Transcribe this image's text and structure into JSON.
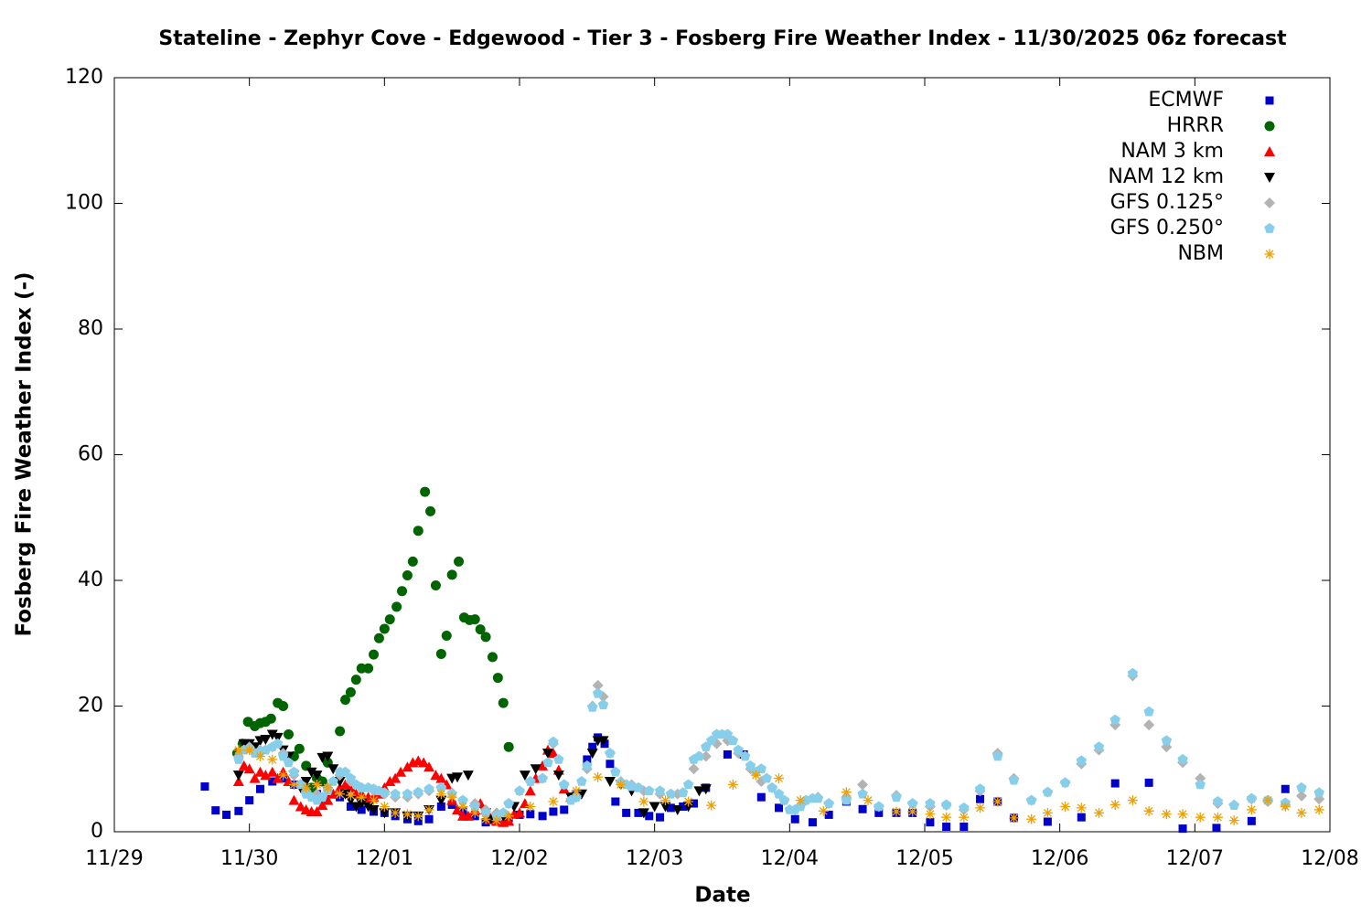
{
  "chart_data": {
    "type": "scatter",
    "title": "Stateline - Zephyr Cove - Edgewood - Tier 3 - Fosberg Fire Weather Index - 11/30/2025 06z forecast",
    "xlabel": "Date",
    "ylabel": "Fosberg Fire Weather Index (-)",
    "xlim": [
      0,
      9
    ],
    "xticks": [
      {
        "value": 0,
        "label": "11/29"
      },
      {
        "value": 1,
        "label": "11/30"
      },
      {
        "value": 2,
        "label": "12/01"
      },
      {
        "value": 3,
        "label": "12/02"
      },
      {
        "value": 4,
        "label": "12/03"
      },
      {
        "value": 5,
        "label": "12/04"
      },
      {
        "value": 6,
        "label": "12/05"
      },
      {
        "value": 7,
        "label": "12/06"
      },
      {
        "value": 8,
        "label": "12/07"
      },
      {
        "value": 9,
        "label": "12/08"
      }
    ],
    "ylim": [
      0,
      120
    ],
    "yticks": [
      0,
      20,
      40,
      60,
      80,
      100,
      120
    ],
    "legend": "top right",
    "series": [
      {
        "name": "ECMWF",
        "color": "#0000cc",
        "marker": "square",
        "x": [
          0.67,
          0.75,
          0.83,
          0.92,
          1.0,
          1.08,
          1.17,
          1.25,
          1.33,
          1.42,
          1.5,
          1.58,
          1.67,
          1.75,
          1.83,
          1.92,
          2.0,
          2.08,
          2.17,
          2.25,
          2.33,
          2.42,
          2.5,
          2.58,
          2.67,
          2.75,
          2.83,
          2.92,
          3.0,
          3.08,
          3.17,
          3.25,
          3.33,
          3.42,
          3.5,
          3.54,
          3.58,
          3.63,
          3.67,
          3.71,
          3.79,
          3.88,
          3.96,
          4.04,
          4.12,
          4.21,
          4.29,
          4.38,
          4.54,
          4.66,
          4.79,
          4.92,
          5.04,
          5.17,
          5.29,
          5.42,
          5.54,
          5.66,
          5.79,
          5.91,
          6.04,
          6.16,
          6.29,
          6.41,
          6.54,
          6.66,
          6.91,
          7.16,
          7.41,
          7.66,
          7.91,
          8.16,
          8.42,
          8.67
        ],
        "values": [
          7.2,
          3.4,
          2.7,
          3.3,
          5,
          6.8,
          8,
          8.5,
          7.5,
          6.5,
          6,
          6,
          5.5,
          4,
          3.5,
          3.2,
          3,
          2.5,
          2,
          1.7,
          2,
          4,
          4.3,
          3.2,
          2.5,
          1.5,
          1.6,
          2.2,
          2.7,
          2.8,
          2.5,
          3.2,
          3.5,
          6,
          11.5,
          13.5,
          15,
          14,
          10.8,
          4.8,
          3,
          3,
          2.5,
          2.3,
          3.8,
          4,
          4.5,
          7,
          12.3,
          12.3,
          5.5,
          3.8,
          2,
          1.5,
          2.7,
          4.8,
          3.6,
          3,
          3,
          3,
          1.5,
          0.8,
          0.8,
          5.2,
          4.8,
          2.2,
          1.6,
          2.3,
          7.7,
          7.8,
          0.5,
          0.6,
          1.7,
          6.8
        ]
      },
      {
        "name": "HRRR",
        "color": "#006400",
        "marker": "circle",
        "x": [
          0.91,
          0.95,
          0.99,
          1.04,
          1.08,
          1.12,
          1.16,
          1.21,
          1.25,
          1.29,
          1.33,
          1.37,
          1.42,
          1.46,
          1.5,
          1.54,
          1.58,
          1.67,
          1.71,
          1.75,
          1.79,
          1.83,
          1.88,
          1.92,
          1.96,
          2.0,
          2.04,
          2.09,
          2.13,
          2.17,
          2.21,
          2.25,
          2.3,
          2.34,
          2.38,
          2.42,
          2.46,
          2.5,
          2.55,
          2.59,
          2.63,
          2.67,
          2.71,
          2.75,
          2.8,
          2.84,
          2.88,
          2.92
        ],
        "values": [
          12.5,
          14,
          17.5,
          16.8,
          17.3,
          17.5,
          18,
          20.5,
          20,
          15.5,
          12,
          13.2,
          10.5,
          7,
          8.5,
          8,
          11,
          16,
          21,
          22.2,
          24.2,
          26,
          26,
          28.2,
          30.8,
          32.3,
          33.8,
          35.8,
          38.3,
          40.8,
          43,
          47.9,
          54.1,
          51,
          39.2,
          28.3,
          31.2,
          40.9,
          43,
          34.1,
          33.7,
          33.8,
          32.2,
          31,
          27.8,
          24.5,
          20.5,
          13.5
        ]
      },
      {
        "name": "NAM 3 km",
        "color": "#ff0000",
        "marker": "triangle-up",
        "x": [
          0.92,
          0.96,
          1.0,
          1.04,
          1.08,
          1.12,
          1.17,
          1.21,
          1.25,
          1.29,
          1.33,
          1.38,
          1.42,
          1.46,
          1.5,
          1.54,
          1.58,
          1.62,
          1.67,
          1.71,
          1.75,
          1.79,
          1.83,
          1.88,
          1.92,
          1.96,
          2.0,
          2.04,
          2.08,
          2.12,
          2.17,
          2.21,
          2.25,
          2.29,
          2.33,
          2.38,
          2.42,
          2.46,
          2.5,
          2.54,
          2.58,
          2.62,
          2.67,
          2.71,
          2.75,
          2.79,
          2.83,
          2.88,
          2.92,
          2.96,
          3.0,
          3.04,
          3.08,
          3.12,
          3.17,
          3.21,
          3.25,
          3.29,
          3.33,
          3.38
        ],
        "values": [
          8,
          10.5,
          10,
          8.5,
          9.5,
          9,
          9.5,
          8.5,
          9.5,
          8,
          5,
          4,
          3.5,
          3.2,
          3.2,
          4.2,
          5,
          6,
          7,
          7.5,
          7,
          6,
          6,
          5.5,
          5.5,
          6,
          7,
          8,
          8.5,
          9.5,
          10.3,
          11,
          11.3,
          11,
          10.3,
          9,
          8.5,
          7.5,
          5,
          3.5,
          2.5,
          2.5,
          3.5,
          4.5,
          3.5,
          2,
          1.7,
          1.5,
          1.7,
          2.8,
          3,
          4.5,
          6.5,
          8.5,
          10.5,
          13,
          12.5,
          9.8,
          6.8,
          5.5
        ]
      },
      {
        "name": "NAM 12 km",
        "color": "#000000",
        "marker": "triangle-down",
        "x": [
          0.92,
          0.96,
          1.0,
          1.04,
          1.08,
          1.12,
          1.17,
          1.21,
          1.25,
          1.29,
          1.33,
          1.38,
          1.42,
          1.46,
          1.5,
          1.54,
          1.58,
          1.62,
          1.67,
          1.71,
          1.75,
          1.79,
          1.83,
          1.88,
          1.92,
          2.0,
          2.08,
          2.17,
          2.25,
          2.33,
          2.42,
          2.5,
          2.54,
          2.62,
          2.67,
          2.75,
          2.79,
          2.88,
          2.96,
          3.04,
          3.12,
          3.21,
          3.29,
          3.38,
          3.46,
          3.54,
          3.58,
          3.62,
          3.67,
          3.75,
          3.83,
          3.92,
          4.0,
          4.08,
          4.17,
          4.25,
          4.33,
          4.38
        ],
        "values": [
          9,
          14,
          14,
          13.5,
          14.5,
          14.7,
          15.5,
          15,
          13,
          12,
          9,
          7,
          8,
          9.5,
          9,
          11.8,
          12,
          10,
          8,
          6,
          5,
          4,
          4.5,
          4,
          3.5,
          3,
          3,
          2.5,
          2.5,
          3.5,
          5,
          8.5,
          8.7,
          9,
          3.5,
          3,
          2,
          2.5,
          4,
          9,
          10,
          12.5,
          9,
          5.5,
          6,
          12.5,
          14.5,
          14.5,
          8,
          7.5,
          6.5,
          3,
          4,
          4,
          3.5,
          4,
          6.5,
          6.8
        ]
      },
      {
        "name": "GFS 0.125°",
        "color": "#b3b3b3",
        "marker": "diamond",
        "x": [
          0.92,
          1.0,
          1.08,
          1.17,
          1.25,
          1.33,
          1.42,
          1.5,
          1.58,
          1.67,
          1.75,
          1.83,
          1.92,
          2.0,
          2.08,
          2.17,
          2.25,
          2.33,
          2.42,
          2.5,
          2.58,
          2.67,
          2.75,
          2.83,
          2.92,
          3.0,
          3.08,
          3.17,
          3.25,
          3.33,
          3.42,
          3.5,
          3.54,
          3.58,
          3.62,
          3.67,
          3.75,
          3.83,
          3.92,
          4.04,
          4.17,
          4.29,
          4.38,
          4.46,
          4.54,
          4.62,
          4.71,
          4.79,
          4.87,
          4.96,
          5.04,
          5.12,
          5.21,
          5.29,
          5.42,
          5.54,
          5.66,
          5.79,
          5.91,
          6.04,
          6.16,
          6.29,
          6.41,
          6.54,
          6.66,
          6.79,
          6.91,
          7.04,
          7.16,
          7.29,
          7.41,
          7.54,
          7.66,
          7.79,
          7.91,
          8.04,
          8.17,
          8.29,
          8.42,
          8.54,
          8.67,
          8.79,
          8.92
        ],
        "values": [
          12,
          13.5,
          13,
          13.5,
          12.5,
          9,
          6.5,
          6,
          7,
          9,
          8,
          7,
          6.5,
          6,
          5.5,
          5.5,
          6,
          6.5,
          7,
          6.2,
          5,
          4.5,
          3.5,
          3,
          4.5,
          6.5,
          8,
          8.5,
          14,
          7.5,
          5.5,
          10,
          20,
          23.3,
          21.5,
          12.5,
          8,
          7.5,
          6.5,
          6,
          6,
          10,
          12,
          14,
          14.5,
          12.5,
          10,
          8,
          7,
          5,
          3.5,
          5,
          5.5,
          4.5,
          5.5,
          7.5,
          4,
          5.8,
          4.5,
          4,
          4.2,
          3.5,
          6.5,
          12.5,
          8.5,
          5,
          6.3,
          7.8,
          10.8,
          13,
          17,
          24.8,
          17,
          13.5,
          11,
          8.5,
          4.5,
          4.3,
          5.2,
          4.8,
          4.3,
          5.7,
          5.2
        ]
      },
      {
        "name": "GFS 0.250°",
        "color": "#87ceeb",
        "marker": "pentagon",
        "x": [
          0.92,
          0.96,
          1.0,
          1.04,
          1.08,
          1.12,
          1.17,
          1.21,
          1.25,
          1.29,
          1.33,
          1.38,
          1.42,
          1.46,
          1.5,
          1.54,
          1.58,
          1.62,
          1.67,
          1.71,
          1.75,
          1.79,
          1.83,
          1.88,
          1.92,
          1.96,
          2.0,
          2.08,
          2.17,
          2.25,
          2.33,
          2.42,
          2.5,
          2.58,
          2.67,
          2.75,
          2.83,
          2.88,
          2.92,
          3.0,
          3.08,
          3.17,
          3.21,
          3.25,
          3.29,
          3.33,
          3.38,
          3.42,
          3.46,
          3.5,
          3.54,
          3.58,
          3.62,
          3.67,
          3.71,
          3.75,
          3.79,
          3.83,
          3.88,
          3.96,
          4.04,
          4.12,
          4.21,
          4.25,
          4.29,
          4.33,
          4.38,
          4.42,
          4.46,
          4.5,
          4.54,
          4.58,
          4.62,
          4.67,
          4.71,
          4.75,
          4.79,
          4.83,
          4.87,
          4.92,
          4.96,
          5.0,
          5.04,
          5.08,
          5.12,
          5.17,
          5.21,
          5.29,
          5.42,
          5.54,
          5.66,
          5.79,
          5.91,
          6.04,
          6.16,
          6.29,
          6.41,
          6.54,
          6.66,
          6.79,
          6.91,
          7.04,
          7.16,
          7.29,
          7.41,
          7.54,
          7.66,
          7.79,
          7.91,
          8.04,
          8.17,
          8.29,
          8.42,
          8.54,
          8.67,
          8.79,
          8.92
        ],
        "values": [
          11.5,
          13,
          13.2,
          12.5,
          12.8,
          13,
          13.5,
          14,
          12,
          11,
          9.5,
          7.5,
          6,
          5.5,
          5,
          5.5,
          6.5,
          8,
          9.5,
          9.5,
          8.5,
          7.5,
          7,
          7,
          6.8,
          6.5,
          6.2,
          6,
          6,
          6.3,
          6.8,
          7,
          6,
          5,
          4,
          3,
          2.5,
          3,
          4.5,
          6.5,
          8,
          8.5,
          11,
          14.3,
          11.5,
          7.5,
          5,
          5.5,
          8,
          10.5,
          19.8,
          22,
          20.2,
          12.5,
          9.5,
          7.8,
          7.5,
          7.2,
          7,
          6.5,
          6.5,
          6,
          6.2,
          7.5,
          11.5,
          12,
          13.5,
          14.5,
          15.5,
          15.5,
          15.5,
          14.5,
          13,
          12,
          10.5,
          9.5,
          10,
          8.5,
          7,
          6,
          5,
          3.5,
          3.5,
          4,
          5,
          5.3,
          5.3,
          4.5,
          5,
          6,
          4,
          5.5,
          4.5,
          4.5,
          4.3,
          3.8,
          6.8,
          12,
          8.2,
          5,
          6.3,
          7.8,
          11.3,
          13.5,
          17.8,
          25.2,
          19.1,
          14.5,
          11.5,
          7.5,
          4.8,
          4.2,
          5.3,
          5,
          4.6,
          7,
          6.2
        ]
      },
      {
        "name": "NBM",
        "color": "#f0a000",
        "marker": "asterisk",
        "x": [
          0.92,
          1.0,
          1.08,
          1.17,
          1.25,
          1.33,
          1.42,
          1.5,
          1.58,
          1.67,
          1.75,
          1.83,
          1.92,
          2.0,
          2.08,
          2.17,
          2.25,
          2.33,
          2.42,
          2.5,
          2.58,
          2.67,
          2.75,
          2.83,
          2.92,
          3.08,
          3.25,
          3.42,
          3.58,
          3.75,
          3.92,
          4.08,
          4.25,
          4.42,
          4.58,
          4.75,
          4.92,
          5.08,
          5.25,
          5.42,
          5.58,
          5.79,
          5.91,
          6.04,
          6.16,
          6.29,
          6.41,
          6.54,
          6.66,
          6.79,
          6.91,
          7.04,
          7.16,
          7.29,
          7.41,
          7.54,
          7.66,
          7.79,
          7.91,
          8.04,
          8.17,
          8.29,
          8.42,
          8.54,
          8.67,
          8.79,
          8.92
        ],
        "values": [
          13,
          13,
          12,
          11.5,
          9,
          7.5,
          7,
          7.5,
          7,
          6,
          5.8,
          5.5,
          5,
          4,
          3,
          2.8,
          2.5,
          3.5,
          6,
          5.5,
          4,
          3,
          2,
          1.8,
          2.5,
          4,
          4.8,
          6.5,
          8.7,
          7.5,
          4.8,
          5,
          4.8,
          4.2,
          7.5,
          9,
          8.5,
          5,
          3.3,
          6.3,
          5,
          3.2,
          3.2,
          2.8,
          2.3,
          2.3,
          3.8,
          4.8,
          2.2,
          2,
          3,
          4,
          3.8,
          3,
          4.3,
          5,
          3.3,
          2.8,
          2.8,
          2.3,
          2.3,
          1.8,
          3.5,
          5,
          4,
          3,
          3.5
        ]
      }
    ]
  }
}
